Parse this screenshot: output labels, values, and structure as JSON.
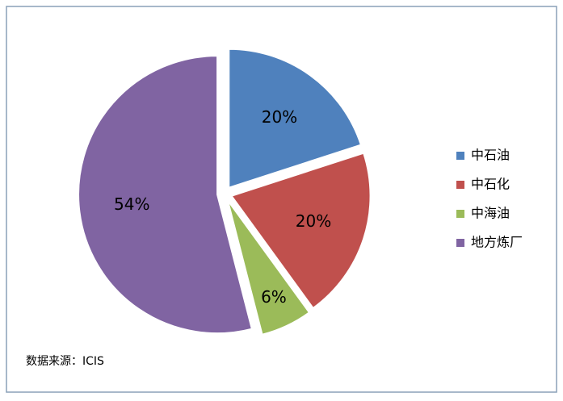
{
  "chart_data": {
    "type": "pie",
    "categories": [
      "中石油",
      "中石化",
      "中海油",
      "地方炼厂"
    ],
    "values": [
      20,
      20,
      6,
      54
    ],
    "value_labels": [
      "20%",
      "20%",
      "6%",
      "54%"
    ],
    "colors": [
      "#4f81bd",
      "#c0504d",
      "#9bbb59",
      "#8064a2"
    ],
    "legend": "right",
    "source": "数据来源：ICIS"
  }
}
